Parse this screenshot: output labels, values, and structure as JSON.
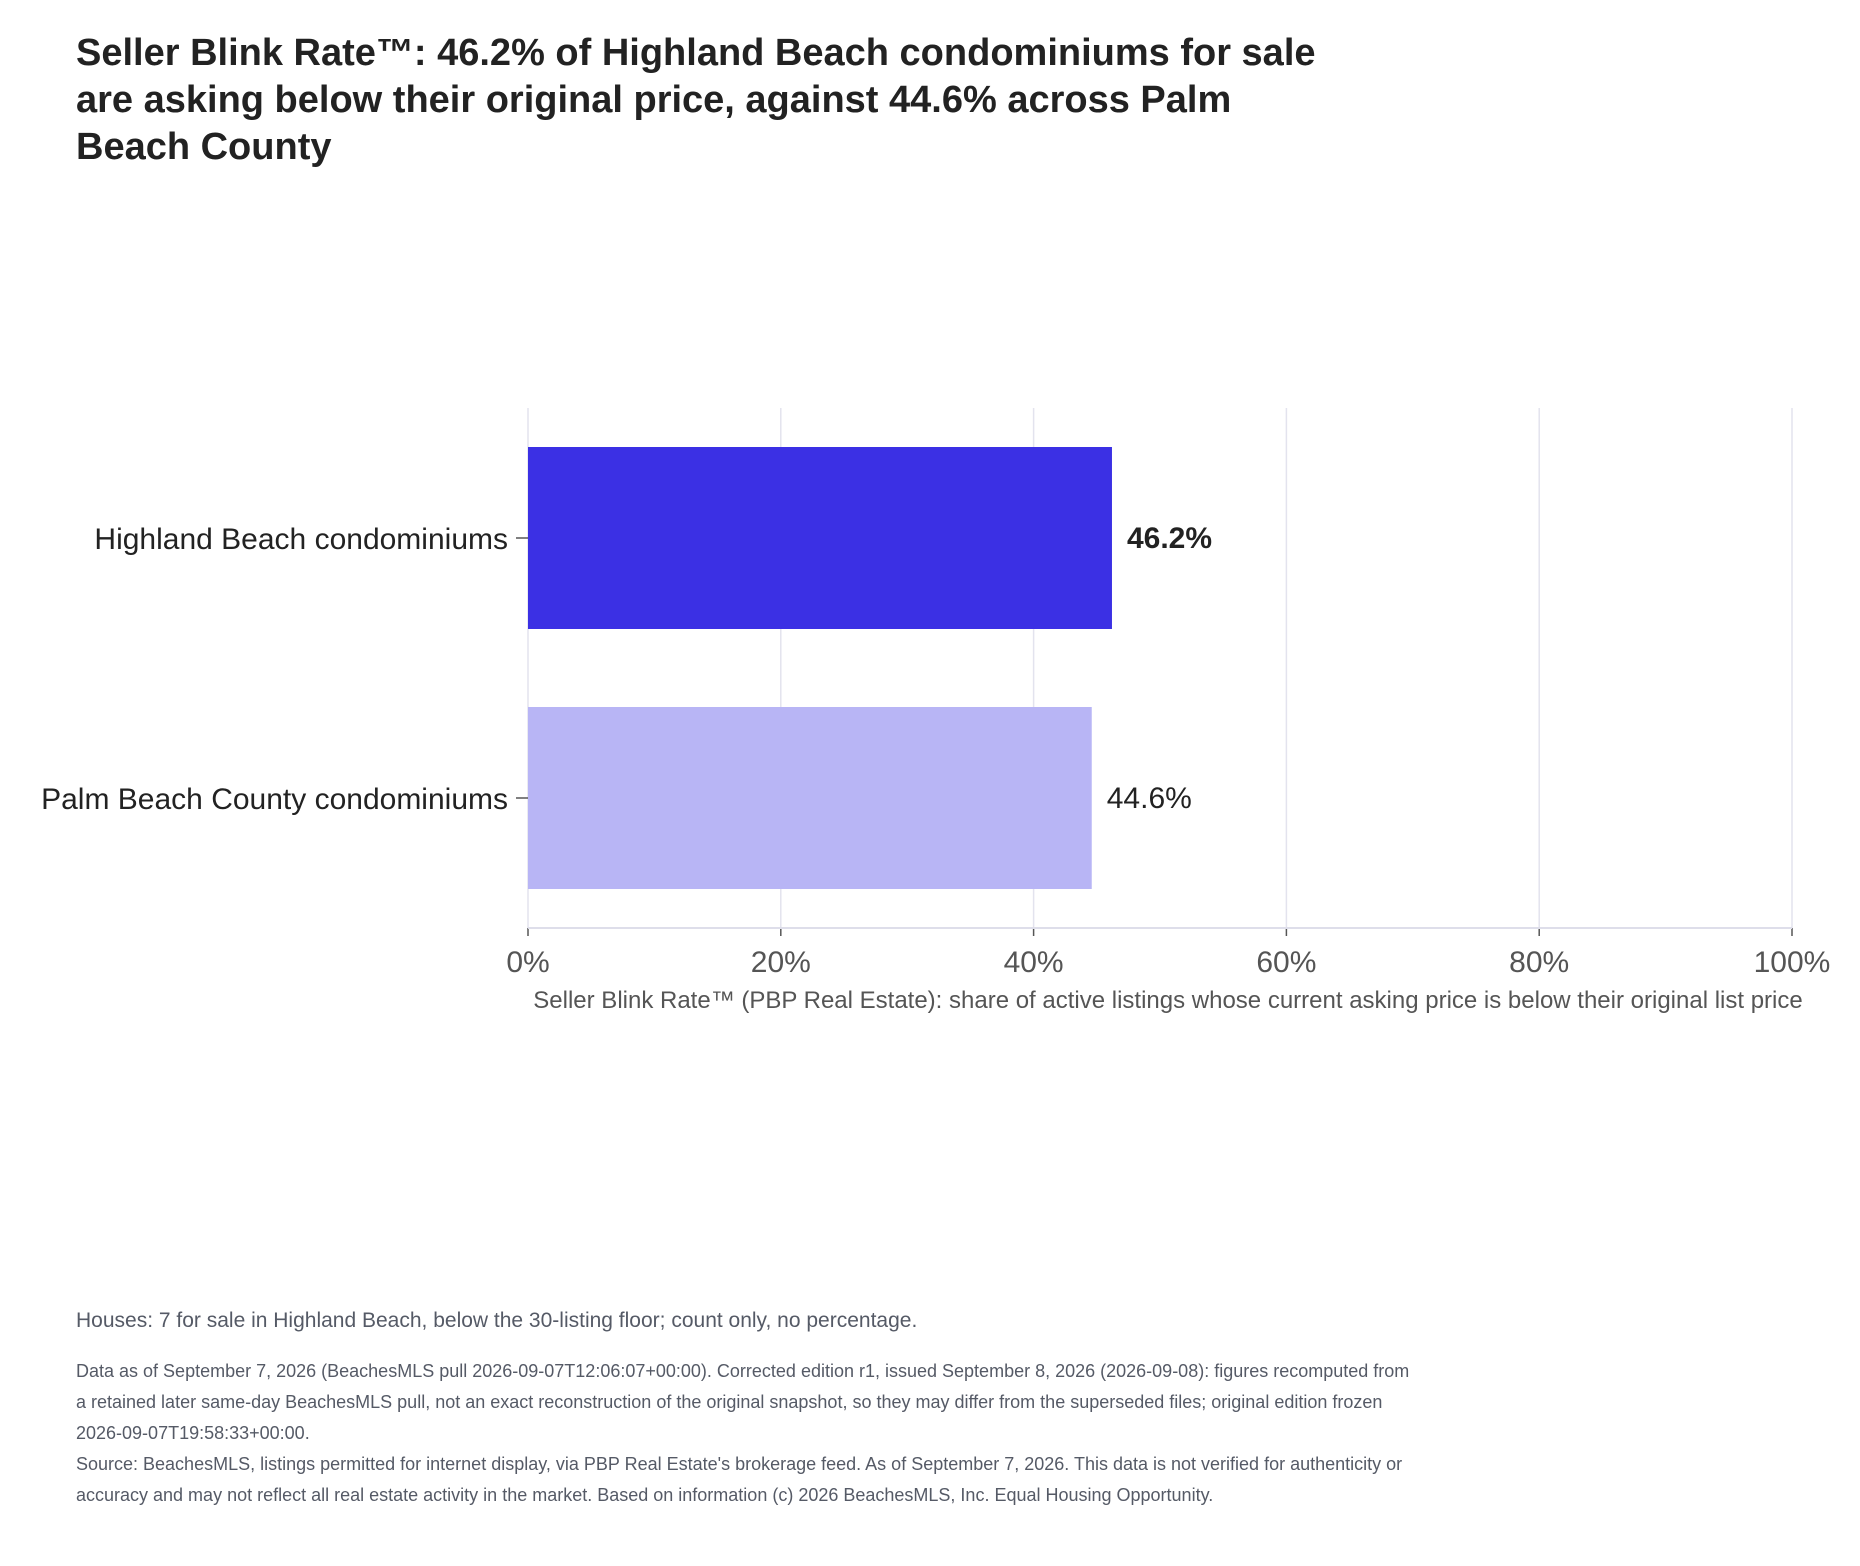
{
  "title": "Seller Blink Rate™: 46.2% of Highland Beach condominiums for sale are asking below their original price, against 44.6% across Palm Beach County",
  "chart_data": {
    "type": "bar",
    "orientation": "horizontal",
    "categories": [
      "Highland Beach condominiums",
      "Palm Beach County condominiums"
    ],
    "values": [
      46.2,
      44.6
    ],
    "value_labels": [
      "46.2%",
      "44.6%"
    ],
    "bar_colors": [
      "#3b30e4",
      "#b8b5f5"
    ],
    "xlabel": "Seller Blink Rate™ (PBP Real Estate): share of active listings whose current asking price is below their original list price",
    "ylabel": "",
    "xlim": [
      0,
      100
    ],
    "x_ticks": [
      0,
      20,
      40,
      60,
      80,
      100
    ],
    "x_tick_labels": [
      "0%",
      "20%",
      "40%",
      "60%",
      "80%",
      "100%"
    ],
    "grid": true
  },
  "note": "Houses: 7 for sale in Highland Beach, below the 30-listing floor; count only, no percentage.",
  "footer": {
    "edition": "Data as of September 7, 2026 (BeachesMLS pull 2026-09-07T12:06:07+00:00). Corrected edition r1, issued September 8, 2026 (2026-09-08): figures recomputed from a retained later same-day BeachesMLS pull, not an exact reconstruction of the original snapshot, so they may differ from the superseded files; original edition frozen 2026-09-07T19:58:33+00:00.",
    "source": "Source: BeachesMLS, listings permitted for internet display, via PBP Real Estate's brokerage feed. As of September 7, 2026. This data is not verified for authenticity or accuracy and may not reflect all real estate activity in the market. Based on information (c) 2026 BeachesMLS, Inc. Equal Housing Opportunity."
  }
}
